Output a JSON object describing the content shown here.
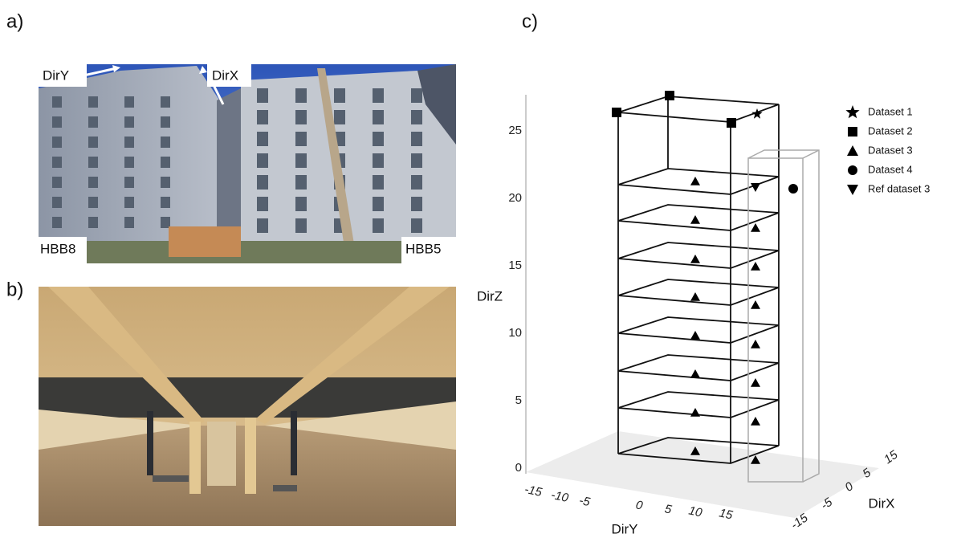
{
  "panels": {
    "a": {
      "label": "a)",
      "annotations": {
        "dir_y": "DirY",
        "dir_x": "DirX",
        "left_building": "HBB8",
        "right_building": "HBB5"
      }
    },
    "b": {
      "label": "b)"
    },
    "c": {
      "label": "c)",
      "z_axis": {
        "title": "DirZ",
        "ticks": [
          "0",
          "5",
          "10",
          "15",
          "20",
          "25"
        ]
      },
      "y_axis": {
        "title": "DirY",
        "ticks": [
          "-15",
          "-10",
          "-5",
          "0",
          "5",
          "10",
          "15"
        ]
      },
      "x_axis": {
        "title": "DirX",
        "ticks": [
          "-15",
          "-5",
          "0",
          "5",
          "15"
        ]
      },
      "legend": [
        "Dataset 1",
        "Dataset 2",
        "Dataset 3",
        "Dataset 4",
        "Ref dataset 3"
      ]
    }
  }
}
